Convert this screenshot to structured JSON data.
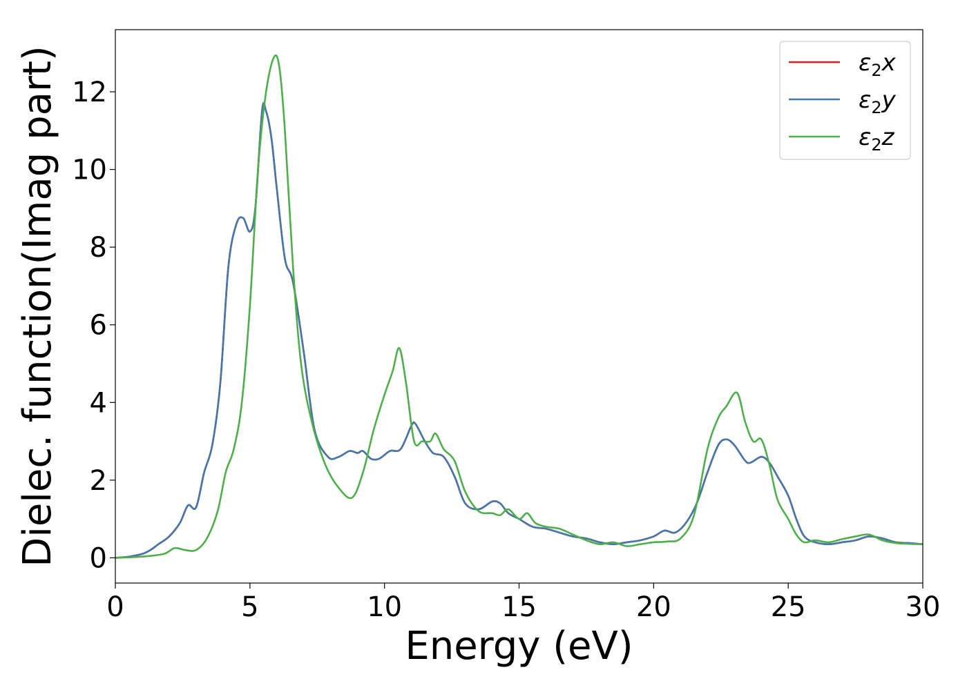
{
  "chart_data": {
    "type": "line",
    "xlabel": "Energy (eV)",
    "ylabel": "Dielec. function(Imag part)",
    "xlim": [
      0,
      30
    ],
    "ylim": [
      -0.65,
      13.6
    ],
    "xticks": [
      0,
      5,
      10,
      15,
      20,
      25,
      30
    ],
    "xtick_labels": [
      "0",
      "5",
      "10",
      "15",
      "20",
      "25",
      "30"
    ],
    "yticks": [
      0,
      2,
      4,
      6,
      8,
      10,
      12
    ],
    "ytick_labels": [
      "0",
      "2",
      "4",
      "6",
      "8",
      "10",
      "12"
    ],
    "grid": false,
    "legend_position": "top-right",
    "series": [
      {
        "name": "ε₂x",
        "legend_main": "ε",
        "legend_sub": "2",
        "legend_var": "x",
        "color": "#e41a1c",
        "x": [
          0,
          0.5,
          1.0,
          1.3,
          1.6,
          2.0,
          2.4,
          2.7,
          3.0,
          3.3,
          3.6,
          3.9,
          4.2,
          4.5,
          4.75,
          5.0,
          5.2,
          5.45,
          5.6,
          5.8,
          6.0,
          6.3,
          6.6,
          7.0,
          7.4,
          7.9,
          8.3,
          8.7,
          9.0,
          9.2,
          9.5,
          9.8,
          10.2,
          10.6,
          11.0,
          11.15,
          11.5,
          11.8,
          12.2,
          12.6,
          13.0,
          13.5,
          14.0,
          14.3,
          14.6,
          15.0,
          15.5,
          16.0,
          16.5,
          17.0,
          17.5,
          18.0,
          18.5,
          19.0,
          19.5,
          20.0,
          20.4,
          20.8,
          21.2,
          21.6,
          22.0,
          22.4,
          22.7,
          23.0,
          23.4,
          23.6,
          24.0,
          24.3,
          24.6,
          25.0,
          25.3,
          25.6,
          26.0,
          26.5,
          27.0,
          27.5,
          28.0,
          28.5,
          29.0,
          29.5,
          30.0
        ],
        "y": [
          0,
          0.03,
          0.1,
          0.2,
          0.35,
          0.55,
          0.9,
          1.35,
          1.3,
          2.2,
          2.9,
          4.5,
          7.5,
          8.6,
          8.75,
          8.4,
          9.0,
          11.5,
          11.5,
          10.8,
          9.5,
          7.7,
          7.1,
          5.3,
          3.3,
          2.6,
          2.6,
          2.75,
          2.7,
          2.75,
          2.55,
          2.55,
          2.75,
          2.8,
          3.4,
          3.45,
          3.0,
          2.7,
          2.6,
          2.1,
          1.4,
          1.25,
          1.45,
          1.4,
          1.15,
          1.0,
          0.8,
          0.75,
          0.65,
          0.55,
          0.5,
          0.4,
          0.35,
          0.4,
          0.45,
          0.55,
          0.7,
          0.65,
          0.9,
          1.4,
          2.2,
          2.9,
          3.05,
          2.9,
          2.5,
          2.45,
          2.6,
          2.45,
          2.1,
          1.6,
          1.0,
          0.55,
          0.4,
          0.35,
          0.4,
          0.45,
          0.55,
          0.5,
          0.4,
          0.38,
          0.35
        ]
      },
      {
        "name": "ε₂y",
        "legend_main": "ε",
        "legend_sub": "2",
        "legend_var": "y",
        "color": "#4477aa",
        "x": [
          0,
          0.5,
          1.0,
          1.3,
          1.6,
          2.0,
          2.4,
          2.7,
          3.0,
          3.3,
          3.6,
          3.9,
          4.2,
          4.5,
          4.75,
          5.0,
          5.2,
          5.45,
          5.6,
          5.8,
          6.0,
          6.3,
          6.6,
          7.0,
          7.4,
          7.9,
          8.3,
          8.7,
          9.0,
          9.2,
          9.5,
          9.8,
          10.2,
          10.6,
          11.0,
          11.15,
          11.5,
          11.8,
          12.2,
          12.6,
          13.0,
          13.5,
          14.0,
          14.3,
          14.6,
          15.0,
          15.5,
          16.0,
          16.5,
          17.0,
          17.5,
          18.0,
          18.5,
          19.0,
          19.5,
          20.0,
          20.4,
          20.8,
          21.2,
          21.6,
          22.0,
          22.4,
          22.7,
          23.0,
          23.4,
          23.6,
          24.0,
          24.3,
          24.6,
          25.0,
          25.3,
          25.6,
          26.0,
          26.5,
          27.0,
          27.5,
          28.0,
          28.5,
          29.0,
          29.5,
          30.0
        ],
        "y": [
          0,
          0.03,
          0.1,
          0.2,
          0.35,
          0.55,
          0.9,
          1.35,
          1.3,
          2.2,
          2.9,
          4.5,
          7.5,
          8.6,
          8.75,
          8.4,
          9.0,
          11.5,
          11.5,
          10.8,
          9.5,
          7.7,
          7.1,
          5.3,
          3.3,
          2.6,
          2.6,
          2.75,
          2.7,
          2.75,
          2.55,
          2.55,
          2.75,
          2.8,
          3.4,
          3.45,
          3.0,
          2.7,
          2.6,
          2.1,
          1.4,
          1.25,
          1.45,
          1.4,
          1.15,
          1.0,
          0.8,
          0.75,
          0.65,
          0.55,
          0.5,
          0.4,
          0.35,
          0.4,
          0.45,
          0.55,
          0.7,
          0.65,
          0.9,
          1.4,
          2.2,
          2.9,
          3.05,
          2.9,
          2.5,
          2.45,
          2.6,
          2.45,
          2.1,
          1.6,
          1.0,
          0.55,
          0.4,
          0.35,
          0.4,
          0.45,
          0.55,
          0.5,
          0.4,
          0.38,
          0.35
        ]
      },
      {
        "name": "ε₂z",
        "legend_main": "ε",
        "legend_sub": "2",
        "legend_var": "z",
        "color": "#4daf4a",
        "x": [
          0,
          1.0,
          1.8,
          2.2,
          2.6,
          3.0,
          3.4,
          3.8,
          4.1,
          4.4,
          4.7,
          5.0,
          5.3,
          5.6,
          5.9,
          6.1,
          6.3,
          6.6,
          6.9,
          7.3,
          7.8,
          8.3,
          8.8,
          9.2,
          9.6,
          10.0,
          10.3,
          10.55,
          10.8,
          11.1,
          11.4,
          11.7,
          11.9,
          12.2,
          12.6,
          13.0,
          13.5,
          14.0,
          14.3,
          14.6,
          15.0,
          15.3,
          15.6,
          16.0,
          16.5,
          17.0,
          17.5,
          18.0,
          18.5,
          19.0,
          19.5,
          20.0,
          20.5,
          21.0,
          21.5,
          22.0,
          22.4,
          22.7,
          23.1,
          23.4,
          23.7,
          24.0,
          24.3,
          24.6,
          25.0,
          25.3,
          25.6,
          26.0,
          26.5,
          27.0,
          27.5,
          28.0,
          28.5,
          29.0,
          29.5,
          30.0
        ],
        "y": [
          0,
          0.03,
          0.1,
          0.25,
          0.2,
          0.2,
          0.5,
          1.2,
          2.2,
          2.8,
          4.0,
          6.5,
          10.0,
          12.0,
          12.9,
          12.6,
          11.0,
          7.5,
          5.0,
          3.5,
          2.4,
          1.8,
          1.55,
          2.2,
          3.3,
          4.2,
          4.8,
          5.4,
          4.5,
          3.0,
          3.0,
          3.0,
          3.2,
          2.8,
          2.5,
          1.7,
          1.2,
          1.15,
          1.1,
          1.25,
          1.0,
          1.15,
          0.9,
          0.8,
          0.75,
          0.6,
          0.45,
          0.35,
          0.4,
          0.3,
          0.35,
          0.4,
          0.42,
          0.5,
          1.1,
          2.8,
          3.6,
          3.9,
          4.25,
          3.5,
          3.0,
          3.05,
          2.4,
          1.5,
          1.0,
          0.6,
          0.4,
          0.45,
          0.4,
          0.48,
          0.55,
          0.6,
          0.45,
          0.38,
          0.36,
          0.35
        ]
      }
    ]
  }
}
